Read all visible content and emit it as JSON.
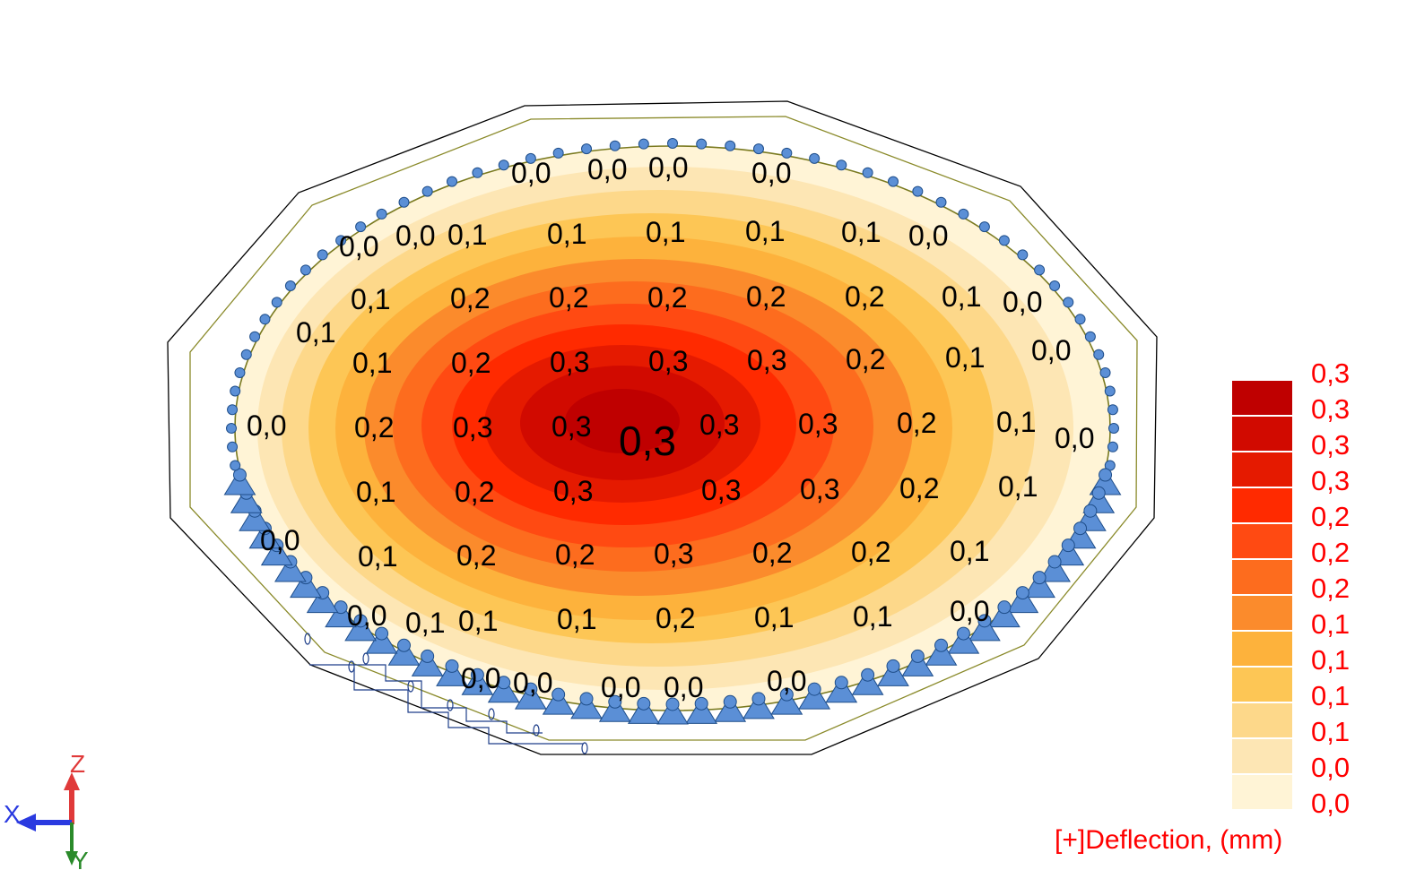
{
  "plot": {
    "max_label": "0,3",
    "contour_labels": [
      "0,0",
      "0,0",
      "0,0",
      "0,0",
      "0,0",
      "0,0",
      "0,1",
      "0,1",
      "0,1",
      "0,1",
      "0,1",
      "0,0",
      "0,1",
      "0,2",
      "0,2",
      "0,2",
      "0,2",
      "0,2",
      "0,1",
      "0,0",
      "0,1",
      "0,1",
      "0,2",
      "0,3",
      "0,3",
      "0,3",
      "0,2",
      "0,1",
      "0,0",
      "0,0",
      "0,2",
      "0,3",
      "0,3",
      "0,3",
      "0,3",
      "0,2",
      "0,1",
      "0,0",
      "0,1",
      "0,2",
      "0,3",
      "0,3",
      "0,3",
      "0,2",
      "0,1",
      "0,0",
      "0,1",
      "0,2",
      "0,2",
      "0,3",
      "0,2",
      "0,2",
      "0,1",
      "0,0",
      "0,1",
      "0,1",
      "0,1",
      "0,2",
      "0,1",
      "0,1",
      "0,0",
      "0,0",
      "0,0",
      "0,0",
      "0,0",
      "0,0"
    ]
  },
  "legend": {
    "title": "[+]Deflection, (mm)",
    "labels": [
      "0,3",
      "0,3",
      "0,3",
      "0,3",
      "0,2",
      "0,2",
      "0,2",
      "0,1",
      "0,1",
      "0,1",
      "0,1",
      "0,0",
      "0,0"
    ],
    "colors": [
      "#bf0000",
      "#d10a00",
      "#e51a00",
      "#ff2a00",
      "#ff4a12",
      "#fd6c1e",
      "#fb8b2c",
      "#fdb23c",
      "#fdc655",
      "#fdd88a",
      "#fde6b4",
      "#fff4d6"
    ]
  },
  "axes": {
    "x": "X",
    "y": "Y",
    "z": "Z"
  },
  "colors": {
    "support": "#5b8fd6",
    "support_edge": "#1f4e8a",
    "outline": "#000000",
    "slab_edge": "#8a8a2a"
  }
}
